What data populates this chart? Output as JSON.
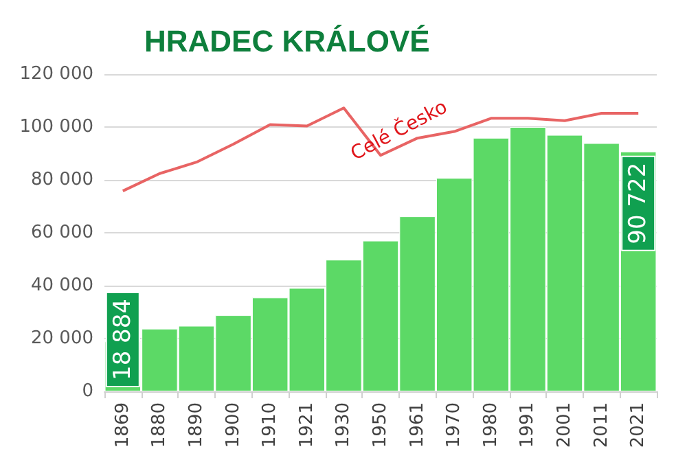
{
  "chart_data": {
    "type": "bar",
    "title": "HRADEC KRÁLOVÉ",
    "categories": [
      "1869",
      "1880",
      "1890",
      "1900",
      "1910",
      "1921",
      "1930",
      "1950",
      "1961",
      "1970",
      "1980",
      "1991",
      "2001",
      "2011",
      "2021"
    ],
    "series": [
      {
        "color": "#5cd966",
        "values": [
          18884,
          23700,
          24800,
          28800,
          35500,
          39100,
          49800,
          57000,
          66200,
          80700,
          95900,
          100000,
          97000,
          93900,
          90722
        ],
        "value_labels": [
          "18 884",
          null,
          null,
          null,
          null,
          null,
          null,
          null,
          null,
          null,
          null,
          null,
          null,
          null,
          "90 722"
        ]
      },
      {
        "type": "line",
        "name": "Celé Česko",
        "color": "#e86464",
        "values": [
          75800,
          82400,
          86700,
          93500,
          100900,
          100400,
          107200,
          89300,
          95800,
          98300,
          103300,
          103300,
          102400,
          105200,
          105200
        ]
      }
    ],
    "ylim": [
      0,
      120000
    ],
    "yticks": [
      {
        "value": 0,
        "label": "0"
      },
      {
        "value": 20000,
        "label": "20 000"
      },
      {
        "value": 40000,
        "label": "40 000"
      },
      {
        "value": 60000,
        "label": "60 000"
      },
      {
        "value": 80000,
        "label": "80 000"
      },
      {
        "value": 100000,
        "label": "100 000"
      },
      {
        "value": 120000,
        "label": "120 000"
      }
    ],
    "grid": "y",
    "legend": false,
    "marker": "none",
    "line_style": "solid"
  }
}
